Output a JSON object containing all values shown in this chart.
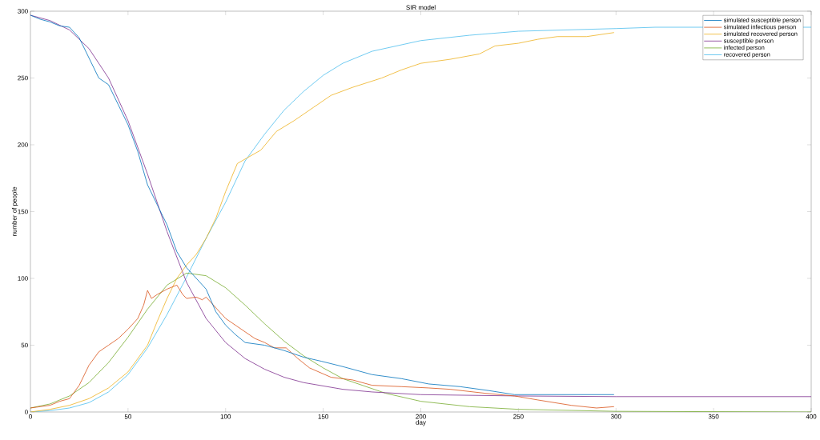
{
  "chart_data": {
    "type": "line",
    "title": "SIR model",
    "xlabel": "day",
    "ylabel": "number of people",
    "xlim": [
      0,
      400
    ],
    "ylim": [
      0,
      300
    ],
    "xticks": [
      0,
      50,
      100,
      150,
      200,
      250,
      300,
      350,
      400
    ],
    "yticks": [
      0,
      50,
      100,
      150,
      200,
      250,
      300
    ],
    "grid": false,
    "legend": "top right",
    "marker": "none",
    "line_style": "solid",
    "series": [
      {
        "name": "simulated susceptible person",
        "color": "#0072bd",
        "x": [
          0,
          5,
          10,
          15,
          20,
          25,
          30,
          35,
          40,
          45,
          50,
          55,
          60,
          65,
          70,
          75,
          80,
          85,
          90,
          95,
          100,
          105,
          110,
          120,
          130,
          140,
          149,
          160,
          175,
          190,
          204,
          220,
          235,
          248,
          260,
          280,
          299
        ],
        "values": [
          297,
          294,
          292,
          289,
          288,
          280,
          265,
          250,
          245,
          230,
          215,
          195,
          170,
          155,
          140,
          120,
          108,
          100,
          92,
          75,
          65,
          58,
          52,
          50,
          46,
          41,
          38,
          34,
          28,
          25,
          21,
          19,
          16,
          13,
          13,
          13,
          13
        ]
      },
      {
        "name": "simulated infectious person",
        "color": "#d95319",
        "x": [
          0,
          5,
          10,
          15,
          20,
          25,
          30,
          35,
          40,
          45,
          50,
          55,
          58,
          60,
          62,
          65,
          70,
          75,
          78,
          80,
          85,
          88,
          90,
          95,
          100,
          105,
          110,
          115,
          120,
          125,
          131,
          137,
          143,
          154,
          165,
          175,
          190,
          204,
          215,
          233,
          248,
          260,
          277,
          290,
          299
        ],
        "values": [
          3,
          4,
          5,
          8,
          10,
          20,
          35,
          45,
          50,
          55,
          62,
          70,
          80,
          91,
          85,
          88,
          92,
          95,
          88,
          85,
          86,
          84,
          86,
          78,
          70,
          65,
          60,
          55,
          52,
          48,
          48,
          40,
          33,
          26,
          24,
          20,
          19,
          18,
          17,
          14,
          12,
          9,
          5,
          3,
          4
        ]
      },
      {
        "name": "simulated recovered person",
        "color": "#edb120",
        "x": [
          0,
          10,
          20,
          30,
          40,
          50,
          55,
          60,
          65,
          70,
          75,
          80,
          85,
          90,
          95,
          100,
          106,
          112,
          118,
          126,
          135,
          145,
          154,
          165,
          180,
          190,
          200,
          215,
          230,
          238,
          250,
          260,
          270,
          285,
          299
        ],
        "values": [
          0,
          2,
          5,
          10,
          18,
          30,
          40,
          50,
          68,
          85,
          100,
          110,
          118,
          130,
          145,
          165,
          186,
          191,
          196,
          210,
          218,
          228,
          237,
          243,
          250,
          256,
          261,
          264,
          268,
          274,
          276,
          279,
          281,
          281,
          284
        ]
      },
      {
        "name": "susceptible person",
        "color": "#7e2f8e",
        "x": [
          0,
          10,
          20,
          30,
          40,
          50,
          60,
          70,
          80,
          90,
          100,
          110,
          120,
          130,
          140,
          150,
          160,
          175,
          200,
          250,
          300,
          400
        ],
        "values": [
          297,
          293,
          286,
          272,
          250,
          218,
          178,
          135,
          97,
          70,
          52,
          40,
          32,
          26,
          22,
          19.5,
          17,
          15,
          13,
          12,
          11.5,
          11.5
        ]
      },
      {
        "name": "infected person",
        "color": "#77ac30",
        "x": [
          0,
          10,
          20,
          30,
          40,
          50,
          60,
          70,
          80,
          90,
          100,
          110,
          120,
          130,
          140,
          150,
          160,
          182,
          200,
          225,
          250,
          300,
          400
        ],
        "values": [
          3,
          6,
          12,
          22,
          37,
          56,
          77,
          95,
          104,
          102,
          93,
          80,
          66,
          53,
          42,
          33,
          25,
          14,
          8,
          4,
          2,
          0.5,
          0
        ]
      },
      {
        "name": "recovered person",
        "color": "#4dbeee",
        "x": [
          0,
          10,
          20,
          30,
          40,
          50,
          60,
          70,
          80,
          90,
          100,
          110,
          120,
          130,
          140,
          150,
          160,
          175,
          200,
          225,
          250,
          300,
          320,
          400
        ],
        "values": [
          0,
          1,
          3,
          7,
          15,
          28,
          48,
          73,
          101,
          130,
          157,
          188,
          208,
          226,
          240,
          252,
          261,
          270,
          278,
          282,
          285,
          287,
          288,
          288
        ]
      }
    ]
  }
}
